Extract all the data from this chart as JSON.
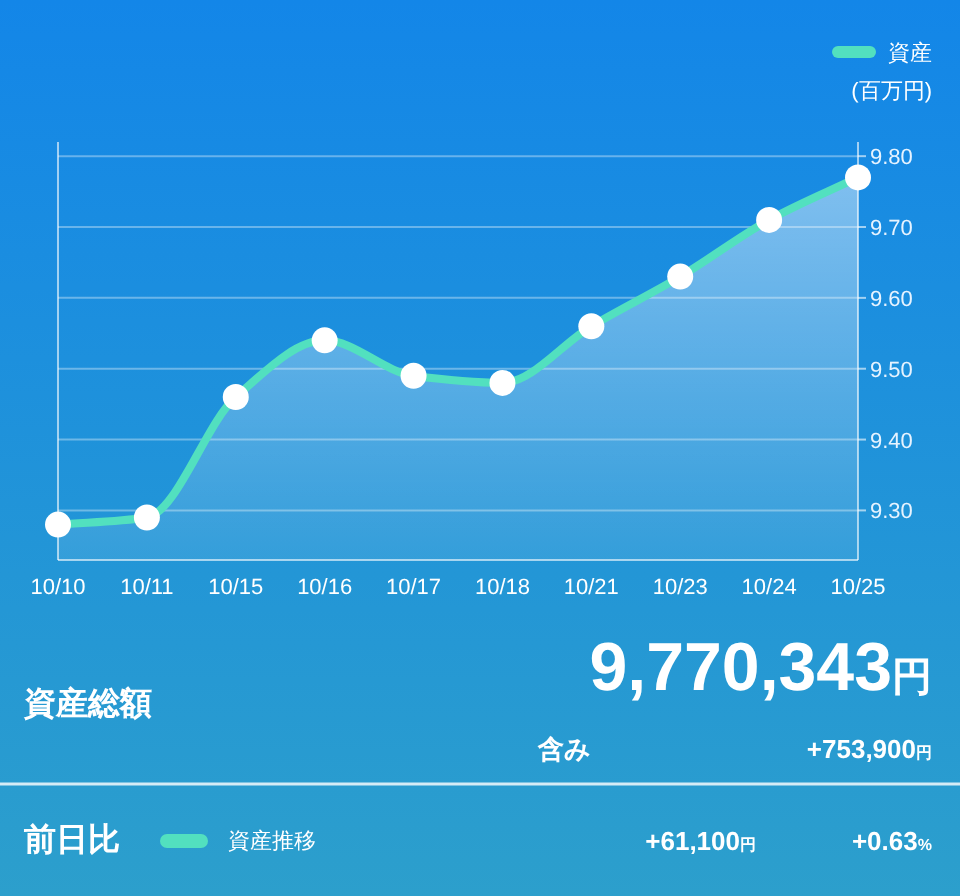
{
  "chart_data": {
    "type": "area",
    "ylabel": "(百万円)",
    "categories": [
      "10/10",
      "10/11",
      "10/15",
      "10/16",
      "10/17",
      "10/18",
      "10/21",
      "10/23",
      "10/24",
      "10/25"
    ],
    "series": [
      {
        "name": "資産",
        "color": "#52e0bf",
        "values": [
          9.28,
          9.29,
          9.46,
          9.54,
          9.49,
          9.48,
          9.56,
          9.63,
          9.71,
          9.77
        ]
      }
    ],
    "ylim": [
      9.23,
      9.82
    ],
    "yticks": [
      {
        "value": 9.3,
        "label": "9.30"
      },
      {
        "value": 9.4,
        "label": "9.40"
      },
      {
        "value": 9.5,
        "label": "9.50"
      },
      {
        "value": 9.6,
        "label": "9.60"
      },
      {
        "value": 9.7,
        "label": "9.70"
      },
      {
        "value": 9.8,
        "label": "9.80"
      }
    ],
    "grid": "y",
    "legend": "top right",
    "marker": "circle",
    "annotations": [
      "資産総額",
      "9,770,343円",
      "含み",
      "+753,900円",
      "前日比",
      "資産推移",
      "+61,100円",
      "+0.63%"
    ]
  }
}
